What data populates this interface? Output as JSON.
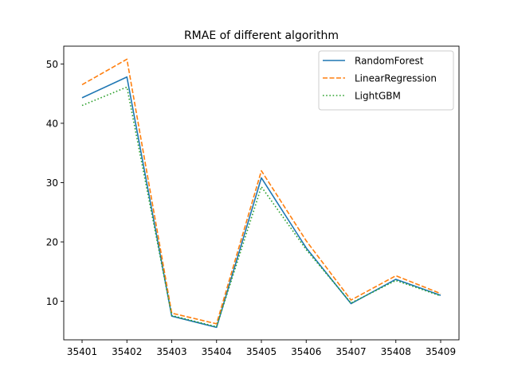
{
  "chart_data": {
    "type": "line",
    "title": "RMAE of different algorithm",
    "xlabel": "",
    "ylabel": "",
    "categories": [
      "35401",
      "35402",
      "35403",
      "35404",
      "35405",
      "35406",
      "35407",
      "35408",
      "35409"
    ],
    "ylim": [
      3.5,
      53
    ],
    "yticks": [
      10,
      20,
      30,
      40,
      50
    ],
    "grid": false,
    "legend_position": "top-right",
    "series": [
      {
        "name": "RandomForest",
        "color": "#1f77b4",
        "style": "solid",
        "values": [
          44.3,
          47.8,
          7.5,
          5.6,
          30.8,
          19.0,
          9.6,
          13.7,
          11.0
        ]
      },
      {
        "name": "LinearRegression",
        "color": "#ff7f0e",
        "style": "dashed",
        "values": [
          46.5,
          50.8,
          8.0,
          6.2,
          32.0,
          20.2,
          10.2,
          14.3,
          11.3
        ]
      },
      {
        "name": "LightGBM",
        "color": "#2ca02c",
        "style": "dotted",
        "values": [
          43.0,
          46.1,
          7.6,
          5.7,
          29.3,
          18.7,
          9.7,
          13.5,
          10.9
        ]
      }
    ]
  }
}
